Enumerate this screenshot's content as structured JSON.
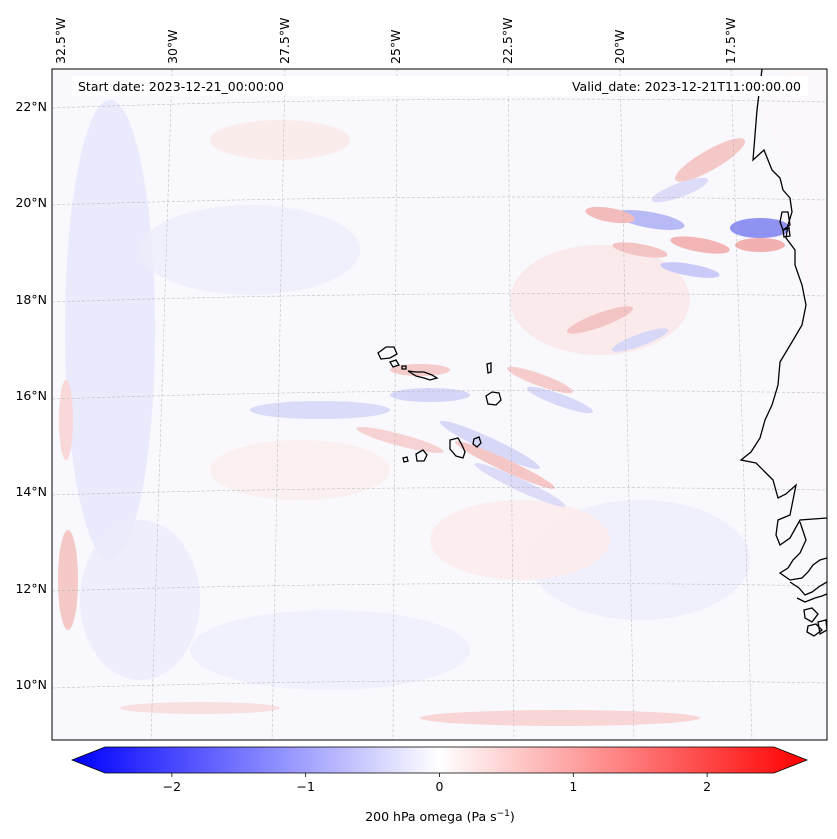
{
  "header": {
    "start_date": "Start date: 2023-12-21_00:00:00",
    "valid_date": "Valid_date: 2023-12-21T11:00:00.00"
  },
  "map": {
    "region": "Cape Verde / West Africa coast",
    "longitude_labels": [
      "32.5°W",
      "30°W",
      "27.5°W",
      "25°W",
      "22.5°W",
      "20°W",
      "17.5°W"
    ],
    "latitude_labels": [
      "22°N",
      "20°N",
      "18°N",
      "16°N",
      "14°N",
      "12°N",
      "10°N"
    ],
    "variable": "200 hPa omega"
  },
  "colorbar": {
    "label_text": "200 hPa omega (Pa s",
    "label_exponent": "−1",
    "label_close": ")",
    "ticks": [
      "−2",
      "−1",
      "0",
      "1",
      "2"
    ],
    "tick_values": [
      -2,
      -1,
      0,
      1,
      2
    ],
    "range": [
      -2.5,
      2.5
    ],
    "negative_color": "#0000ff",
    "neutral_color": "#ffffff",
    "positive_color": "#ff0000"
  },
  "colors": {
    "coastline": "#000000",
    "gridline": "#b0b0b0"
  }
}
